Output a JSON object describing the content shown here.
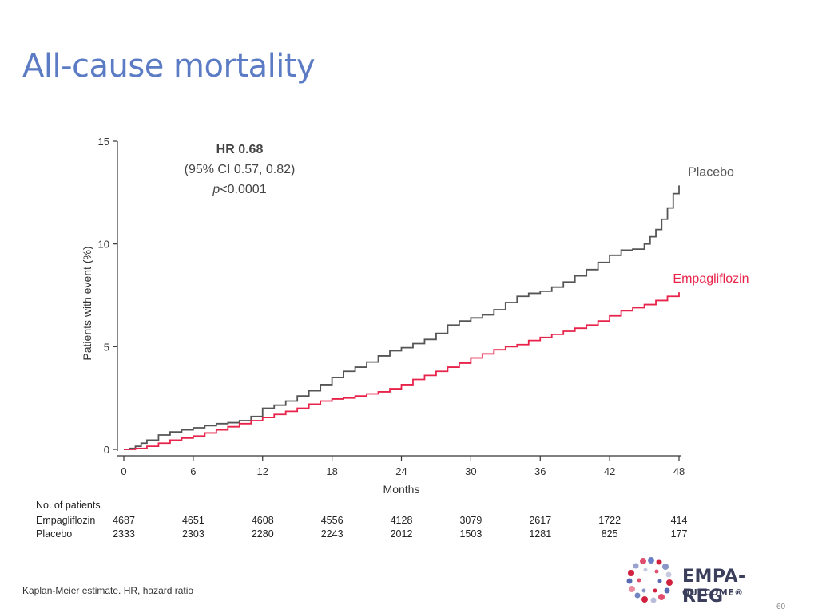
{
  "slide": {
    "title": "All-cause mortality",
    "footnote": "Kaplan-Meier estimate. HR, hazard ratio",
    "page_number": "60"
  },
  "logo": {
    "main": "EMPA-REG",
    "sub": "OUTCOME®"
  },
  "annotation": {
    "hr": "HR 0.68",
    "ci": "(95% CI 0.57, 0.82)",
    "p_italic": "p",
    "p_value": "<0.0001"
  },
  "risk_table": {
    "heading": "No. of patients",
    "rows": [
      {
        "label": "Empagliflozin",
        "values": [
          "4687",
          "4651",
          "4608",
          "4556",
          "4128",
          "3079",
          "2617",
          "1722",
          "414"
        ]
      },
      {
        "label": "Placebo",
        "values": [
          "2333",
          "2303",
          "2280",
          "2243",
          "2012",
          "1503",
          "1281",
          "825",
          "177"
        ]
      }
    ]
  },
  "colors": {
    "title": "#5b7bc4",
    "placebo": "#555555",
    "empagliflozin": "#e8234a",
    "axis": "#333333"
  },
  "chart_data": {
    "type": "line",
    "xlabel": "Months",
    "ylabel": "Patients with event (%)",
    "xlim": [
      0,
      48
    ],
    "ylim": [
      0,
      15
    ],
    "xticks": [
      0,
      6,
      12,
      18,
      24,
      30,
      36,
      42,
      48
    ],
    "yticks": [
      0,
      5,
      10,
      15
    ],
    "grid": false,
    "series": [
      {
        "name": "Placebo",
        "color": "#555555",
        "x": [
          0,
          0.5,
          1,
          1.5,
          2,
          3,
          4,
          5,
          6,
          7,
          8,
          9,
          10,
          11,
          12,
          13,
          14,
          15,
          16,
          17,
          18,
          19,
          20,
          21,
          22,
          23,
          24,
          25,
          26,
          27,
          28,
          29,
          30,
          31,
          32,
          33,
          34,
          35,
          36,
          37,
          38,
          39,
          40,
          41,
          42,
          43,
          44,
          45,
          45.5,
          46,
          46.5,
          47,
          47.5,
          48
        ],
        "values": [
          0,
          0.05,
          0.15,
          0.3,
          0.45,
          0.7,
          0.85,
          0.95,
          1.05,
          1.15,
          1.25,
          1.3,
          1.4,
          1.6,
          2.0,
          2.15,
          2.35,
          2.6,
          2.85,
          3.15,
          3.5,
          3.8,
          4.0,
          4.25,
          4.55,
          4.8,
          4.95,
          5.15,
          5.35,
          5.65,
          6.05,
          6.25,
          6.4,
          6.55,
          6.8,
          7.15,
          7.45,
          7.6,
          7.7,
          7.9,
          8.15,
          8.45,
          8.75,
          9.1,
          9.45,
          9.7,
          9.75,
          10.0,
          10.35,
          10.7,
          11.2,
          11.75,
          12.45,
          12.85
        ]
      },
      {
        "name": "Empagliflozin",
        "color": "#e8234a",
        "x": [
          0,
          1,
          2,
          3,
          4,
          5,
          6,
          7,
          8,
          9,
          10,
          11,
          12,
          13,
          14,
          15,
          16,
          17,
          18,
          19,
          20,
          21,
          22,
          23,
          24,
          25,
          26,
          27,
          28,
          29,
          30,
          31,
          32,
          33,
          34,
          35,
          36,
          37,
          38,
          39,
          40,
          41,
          42,
          43,
          44,
          45,
          46,
          47,
          48
        ],
        "values": [
          0,
          0.05,
          0.15,
          0.3,
          0.45,
          0.55,
          0.65,
          0.8,
          0.95,
          1.1,
          1.25,
          1.4,
          1.55,
          1.7,
          1.85,
          2.0,
          2.2,
          2.35,
          2.45,
          2.5,
          2.6,
          2.7,
          2.8,
          2.95,
          3.15,
          3.4,
          3.6,
          3.8,
          4.0,
          4.2,
          4.45,
          4.65,
          4.85,
          5.0,
          5.1,
          5.3,
          5.45,
          5.6,
          5.75,
          5.9,
          6.05,
          6.25,
          6.5,
          6.75,
          6.9,
          7.05,
          7.25,
          7.45,
          7.65
        ]
      }
    ]
  }
}
